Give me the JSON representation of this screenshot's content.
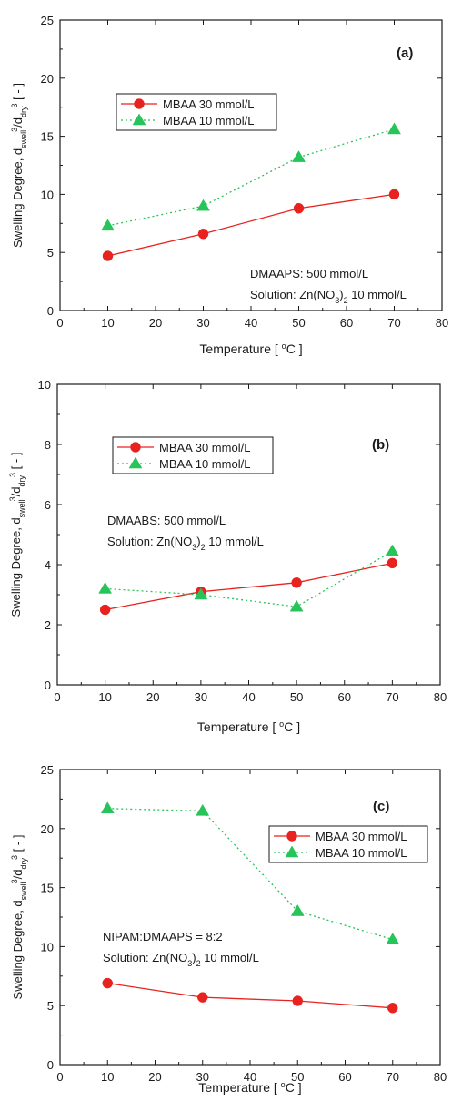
{
  "chart_data": [
    {
      "type": "line",
      "panel_label": "(a)",
      "xlabel": "Temperature [ °C ]",
      "ylabel": "Swelling Degree, dswell³/ddry³ [ - ]",
      "xlim": [
        0,
        80
      ],
      "ylim": [
        0,
        25
      ],
      "xticks": [
        0,
        10,
        20,
        30,
        40,
        50,
        60,
        70,
        80
      ],
      "yticks": [
        0,
        5,
        10,
        15,
        20,
        25
      ],
      "x": [
        10,
        30,
        50,
        70
      ],
      "series": [
        {
          "name": "MBAA 30 mmol/L",
          "values": [
            4.7,
            6.6,
            8.8,
            10.0
          ],
          "color": "#e8231f",
          "marker": "circle",
          "style": "solid"
        },
        {
          "name": "MBAA 10 mmol/L",
          "values": [
            7.3,
            9.0,
            13.2,
            15.6
          ],
          "color": "#27c45a",
          "marker": "triangle",
          "style": "dotted"
        }
      ],
      "legend_position": "top-left",
      "annotation": [
        "DMAAPS: 500 mmol/L",
        "Solution: Zn(NO3)2 10 mmol/L"
      ],
      "grid": false
    },
    {
      "type": "line",
      "panel_label": "(b)",
      "xlabel": "Temperature [ °C ]",
      "ylabel": "Swelling Degree, dswell³/ddry³ [ - ]",
      "xlim": [
        0,
        80
      ],
      "ylim": [
        0,
        10
      ],
      "xticks": [
        0,
        10,
        20,
        30,
        40,
        50,
        60,
        70,
        80
      ],
      "yticks": [
        0,
        2,
        4,
        6,
        8,
        10
      ],
      "x": [
        10,
        30,
        50,
        70
      ],
      "series": [
        {
          "name": "MBAA 30 mmol/L",
          "values": [
            2.5,
            3.1,
            3.4,
            4.05
          ],
          "color": "#e8231f",
          "marker": "circle",
          "style": "solid"
        },
        {
          "name": "MBAA 10 mmol/L",
          "values": [
            3.2,
            3.0,
            2.6,
            4.45
          ],
          "color": "#27c45a",
          "marker": "triangle",
          "style": "dotted"
        }
      ],
      "legend_position": "top-left",
      "annotation": [
        "DMAABS: 500 mmol/L",
        "Solution: Zn(NO3)2 10 mmol/L"
      ],
      "grid": false
    },
    {
      "type": "line",
      "panel_label": "(c)",
      "xlabel": "Temperature [ °C ]",
      "ylabel": "Swelling Degree, dswell³/ddry³ [ - ]",
      "xlim": [
        0,
        80
      ],
      "ylim": [
        0,
        25
      ],
      "xticks": [
        0,
        10,
        20,
        30,
        40,
        50,
        60,
        70,
        80
      ],
      "yticks": [
        0,
        5,
        10,
        15,
        20,
        25
      ],
      "x": [
        10,
        30,
        50,
        70
      ],
      "series": [
        {
          "name": "MBAA 30 mmol/L",
          "values": [
            6.9,
            5.7,
            5.4,
            4.8
          ],
          "color": "#e8231f",
          "marker": "circle",
          "style": "solid"
        },
        {
          "name": "MBAA 10 mmol/L",
          "values": [
            21.7,
            21.5,
            13.0,
            10.6
          ],
          "color": "#27c45a",
          "marker": "triangle",
          "style": "dotted"
        }
      ],
      "legend_position": "top-right",
      "annotation": [
        "NIPAM:DMAAPS = 8:2",
        "Solution: Zn(NO3)2 10 mmol/L"
      ],
      "grid": false
    }
  ]
}
